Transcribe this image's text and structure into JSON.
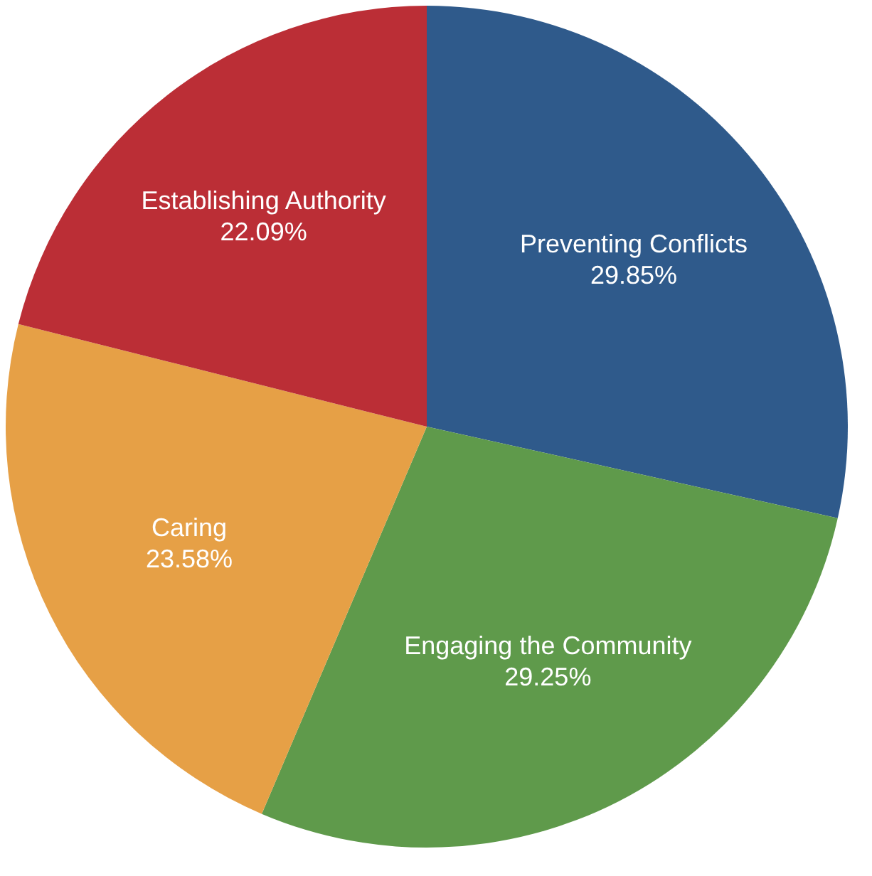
{
  "chart_data": {
    "type": "pie",
    "categories": [
      "Preventing Conflicts",
      "Engaging the Community",
      "Caring",
      "Establishing Authority"
    ],
    "values": [
      29.85,
      29.25,
      23.58,
      22.09
    ],
    "value_labels": [
      "29.85%",
      "29.25%",
      "23.58%",
      "22.09%"
    ],
    "colors": [
      "#2f5a8b",
      "#5f9a4b",
      "#e6a046",
      "#bb2e36"
    ]
  }
}
